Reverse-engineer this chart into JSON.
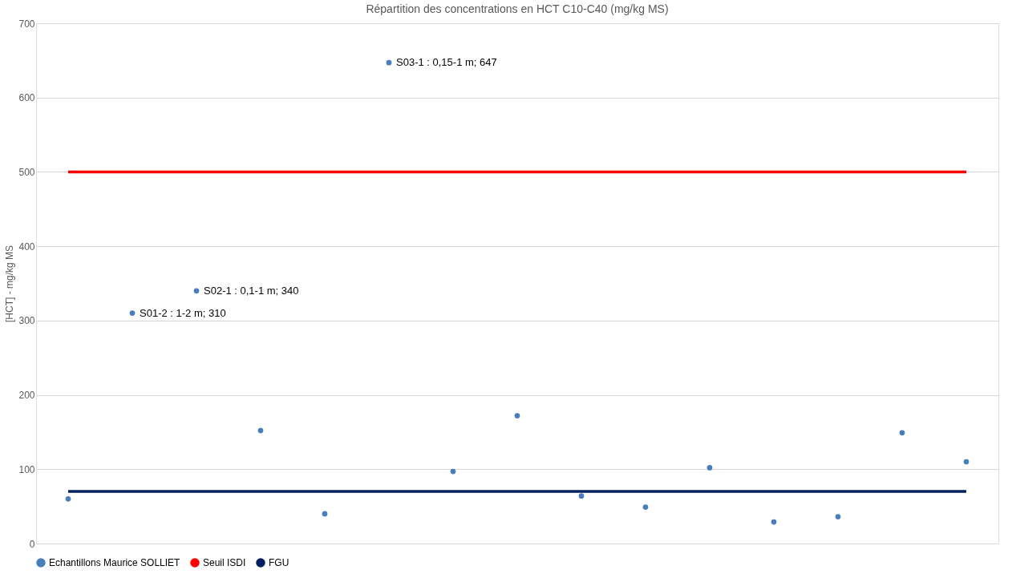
{
  "chart_data": {
    "type": "scatter",
    "title": "Répartition des concentrations en HCT C10-C40 (mg/kg MS)",
    "ylabel": "[HCT] - mg/kg MS",
    "categories": [
      null,
      null,
      null,
      null,
      null,
      null,
      null,
      null,
      null,
      null,
      null,
      null,
      null,
      null,
      null
    ],
    "ylim": [
      0,
      700
    ],
    "yticks": [
      0,
      100,
      200,
      300,
      400,
      500,
      600,
      700
    ],
    "grid": "y",
    "legend": "bottom",
    "series": [
      {
        "name": "Echantillons Maurice SOLLIET",
        "marker": "circle",
        "color": "#4a7ebb",
        "values": [
          60,
          310,
          340,
          152,
          40,
          647,
          97,
          172,
          64,
          49,
          102,
          29,
          36,
          149,
          110
        ],
        "value_labels": [
          null,
          "S01-2 : 1-2 m; 310",
          "S02-1 : 0,1-1 m; 340",
          null,
          null,
          "S03-1 : 0,15-1 m; 647",
          null,
          null,
          null,
          null,
          null,
          null,
          null,
          null,
          null
        ]
      },
      {
        "name": "Seuil ISDI",
        "type": "line",
        "line_style": "solid",
        "marker": "none",
        "color": "#ff0000",
        "values": [
          500,
          500,
          500,
          500,
          500,
          500,
          500,
          500,
          500,
          500,
          500,
          500,
          500,
          500,
          500
        ]
      },
      {
        "name": "FGU",
        "type": "line",
        "line_style": "solid",
        "marker": "none",
        "color": "#002060",
        "values": [
          70,
          70,
          70,
          70,
          70,
          70,
          70,
          70,
          70,
          70,
          70,
          70,
          70,
          70,
          70
        ]
      }
    ]
  }
}
